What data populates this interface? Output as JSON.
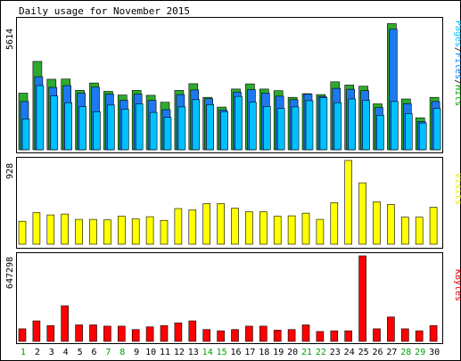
{
  "chart_data": [
    {
      "type": "bar",
      "title": "Daily usage for November 2015",
      "ylabel": "5614",
      "legend": "Pages/Files/Hits",
      "legend_parts": [
        {
          "text": "Pages",
          "color": "#00c0ff"
        },
        {
          "text": "/",
          "color": "#000000"
        },
        {
          "text": "Files",
          "color": "#0080ff"
        },
        {
          "text": "/",
          "color": "#000000"
        },
        {
          "text": "Hits",
          "color": "#00a000"
        }
      ],
      "ylim": [
        0,
        5614
      ],
      "categories": [
        "1",
        "2",
        "3",
        "4",
        "5",
        "6",
        "7",
        "8",
        "9",
        "10",
        "11",
        "12",
        "13",
        "14",
        "15",
        "16",
        "17",
        "18",
        "19",
        "20",
        "21",
        "22",
        "23",
        "24",
        "25",
        "26",
        "27",
        "28",
        "29",
        "30"
      ],
      "series": [
        {
          "name": "Hits",
          "color": "#2eaa2e",
          "values": [
            2440,
            3810,
            3040,
            3050,
            2560,
            2880,
            2520,
            2360,
            2560,
            2350,
            2050,
            2560,
            2850,
            2260,
            1840,
            2620,
            2840,
            2620,
            2550,
            2260,
            2420,
            2380,
            2930,
            2790,
            2740,
            1980,
            5440,
            2190,
            1380,
            2260
          ]
        },
        {
          "name": "Files",
          "color": "#1e78f0",
          "values": [
            2080,
            3150,
            2690,
            2770,
            2440,
            2700,
            2400,
            2130,
            2400,
            2130,
            1730,
            2380,
            2580,
            2200,
            1720,
            2480,
            2590,
            2440,
            2310,
            2160,
            2400,
            2300,
            2650,
            2610,
            2550,
            1820,
            5200,
            1990,
            1220,
            2080
          ]
        },
        {
          "name": "Pages",
          "color": "#00c0ff",
          "values": [
            1330,
            2770,
            2320,
            2030,
            1860,
            1640,
            1930,
            1750,
            1980,
            1610,
            1400,
            1850,
            2160,
            1950,
            1640,
            2300,
            2050,
            1870,
            1780,
            1850,
            2120,
            2250,
            2030,
            2190,
            2130,
            1490,
            2080,
            1560,
            1150,
            1780
          ]
        }
      ],
      "weekend_categories": [
        "1",
        "7",
        "8",
        "14",
        "15",
        "21",
        "22",
        "28",
        "29"
      ]
    },
    {
      "type": "bar",
      "ylabel": "928",
      "legend": "Visits",
      "legend_color": "#e8e800",
      "ylim": [
        0,
        928
      ],
      "series": [
        {
          "name": "Visits",
          "color": "#ffff00",
          "values": [
            255,
            350,
            325,
            335,
            275,
            275,
            270,
            310,
            280,
            305,
            265,
            395,
            380,
            450,
            450,
            400,
            360,
            360,
            310,
            315,
            345,
            275,
            460,
            928,
            680,
            470,
            440,
            300,
            300,
            410
          ]
        }
      ]
    },
    {
      "type": "bar",
      "ylabel": "647298",
      "legend": "KBytes",
      "legend_color": "#e00000",
      "ylim": [
        0,
        647298
      ],
      "series": [
        {
          "name": "KBytes",
          "color": "#ff0000",
          "values": [
            95000,
            155000,
            120000,
            270000,
            125000,
            125000,
            115000,
            115000,
            90000,
            110000,
            120000,
            140000,
            155000,
            90000,
            80000,
            90000,
            115000,
            115000,
            85000,
            90000,
            125000,
            75000,
            80000,
            80000,
            647298,
            95000,
            185000,
            95000,
            80000,
            120000
          ]
        }
      ]
    }
  ]
}
